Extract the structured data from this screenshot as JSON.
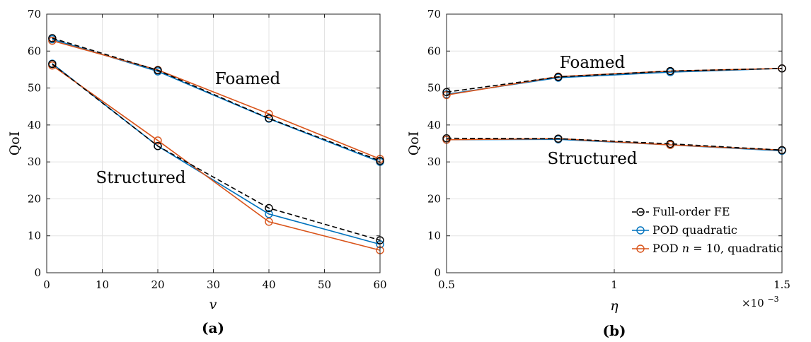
{
  "colors": {
    "full": "#000000",
    "pod": "#0072BD",
    "podn": "#D95319"
  },
  "legend": {
    "full": "Full-order FE",
    "pod": "POD quadratic",
    "podn_pre": "POD ",
    "podn_var": "n",
    "podn_post": " = 10, quadratic"
  },
  "chart_data": [
    {
      "type": "line",
      "panel_label": "(a)",
      "xlabel": "v",
      "ylabel": "QoI",
      "xlim": [
        0,
        60
      ],
      "ylim": [
        0,
        70
      ],
      "xticks": [
        0,
        10,
        20,
        30,
        40,
        50,
        60
      ],
      "yticks": [
        0,
        10,
        20,
        30,
        40,
        50,
        60,
        70
      ],
      "xtick_labels": [
        "0",
        "10",
        "20",
        "30",
        "40",
        "50",
        "60"
      ],
      "ytick_labels": [
        "0",
        "10",
        "20",
        "30",
        "40",
        "50",
        "60",
        "70"
      ],
      "grid": true,
      "annotations": [
        "Foamed",
        "Structured"
      ],
      "x": [
        1,
        20,
        40,
        60
      ],
      "series": [
        {
          "key": "full",
          "group": "Foamed",
          "values": [
            63.5,
            54.8,
            41.8,
            30.3
          ]
        },
        {
          "key": "pod",
          "group": "Foamed",
          "values": [
            63.2,
            54.5,
            41.7,
            30.0
          ]
        },
        {
          "key": "podn",
          "group": "Foamed",
          "values": [
            62.8,
            54.9,
            43.0,
            30.8
          ]
        },
        {
          "key": "full",
          "group": "Structured",
          "values": [
            56.5,
            34.3,
            17.5,
            8.8
          ]
        },
        {
          "key": "pod",
          "group": "Structured",
          "values": [
            56.6,
            34.3,
            15.9,
            7.7
          ]
        },
        {
          "key": "podn",
          "group": "Structured",
          "values": [
            56.1,
            35.8,
            13.8,
            6.1
          ]
        }
      ]
    },
    {
      "type": "line",
      "panel_label": "(b)",
      "xlabel": "η",
      "ylabel": "QoI",
      "xlim": [
        0.5,
        1.5
      ],
      "ylim": [
        0,
        70
      ],
      "xticks": [
        0.5,
        1.0,
        1.5
      ],
      "yticks": [
        0,
        10,
        20,
        30,
        40,
        50,
        60,
        70
      ],
      "xtick_labels": [
        "0.5",
        "1",
        "1.5"
      ],
      "ytick_labels": [
        "0",
        "10",
        "20",
        "30",
        "40",
        "50",
        "60",
        "70"
      ],
      "x_exponent_base": "×10",
      "x_exponent_power": "−3",
      "grid": true,
      "legend_position": "bottom-right",
      "annotations": [
        "Foamed",
        "Structured"
      ],
      "x": [
        0.5,
        0.833,
        1.167,
        1.5
      ],
      "series": [
        {
          "key": "full",
          "group": "Foamed",
          "values": [
            48.9,
            53.0,
            54.6,
            55.3
          ]
        },
        {
          "key": "pod",
          "group": "Foamed",
          "values": [
            48.3,
            52.8,
            54.3,
            55.3
          ]
        },
        {
          "key": "podn",
          "group": "Foamed",
          "values": [
            48.1,
            53.1,
            54.6,
            55.3
          ]
        },
        {
          "key": "full",
          "group": "Structured",
          "values": [
            36.4,
            36.3,
            34.9,
            33.2
          ]
        },
        {
          "key": "pod",
          "group": "Structured",
          "values": [
            36.0,
            36.1,
            34.6,
            33.0
          ]
        },
        {
          "key": "podn",
          "group": "Structured",
          "values": [
            36.0,
            36.3,
            34.6,
            33.2
          ]
        }
      ]
    }
  ]
}
